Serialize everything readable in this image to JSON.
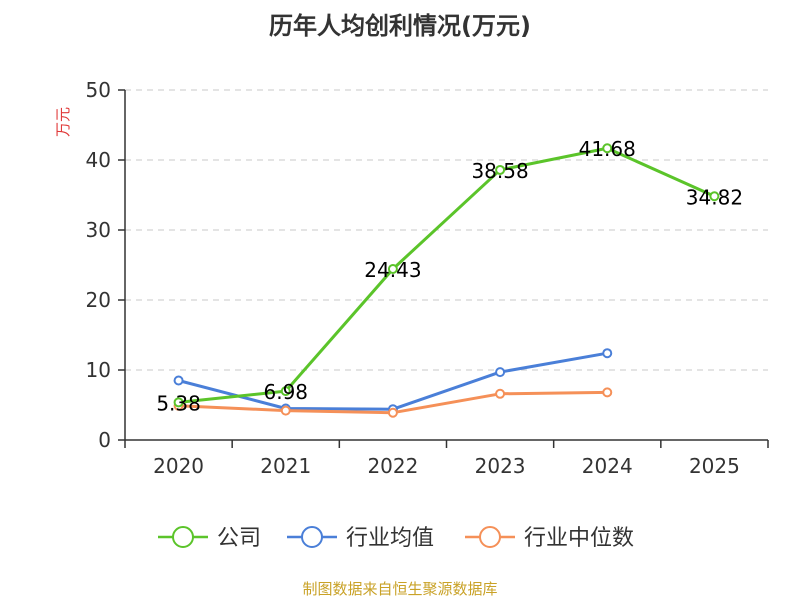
{
  "chart_data": {
    "type": "line",
    "title": "历年人均创利情况(万元)",
    "ylabel": "万元",
    "categories": [
      "2020",
      "2021",
      "2022",
      "2023",
      "2024",
      "2025"
    ],
    "ylim": [
      0,
      50
    ],
    "yticks": [
      "0",
      "10",
      "20",
      "30",
      "40",
      "50"
    ],
    "grid": true,
    "legend_position": "bottom",
    "series": [
      {
        "name": "公司",
        "color": "#5bc42a",
        "values": [
          5.38,
          6.98,
          24.43,
          38.58,
          41.68,
          34.82
        ],
        "labels": [
          "5.38",
          "6.98",
          "24.43",
          "38.58",
          "41.68",
          "34.82"
        ]
      },
      {
        "name": "行业均值",
        "color": "#4a7fd8",
        "values": [
          8.5,
          4.5,
          4.4,
          9.7,
          12.4,
          null
        ]
      },
      {
        "name": "行业中位数",
        "color": "#f59058",
        "values": [
          4.9,
          4.2,
          3.9,
          6.6,
          6.8,
          null
        ]
      }
    ]
  },
  "source": "制图数据来自恒生聚源数据库"
}
